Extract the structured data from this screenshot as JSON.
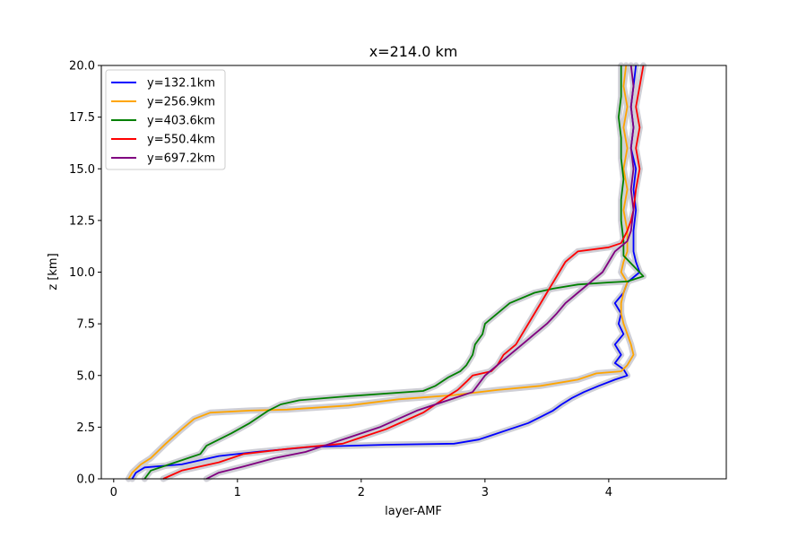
{
  "chart_data": {
    "type": "line",
    "title": "x=214.0 km",
    "xlabel": "layer-AMF",
    "ylabel": "z [km]",
    "xlim": [
      -0.1,
      4.95
    ],
    "ylim": [
      0,
      20
    ],
    "xticks": [
      0,
      1,
      2,
      3,
      4
    ],
    "yticks": [
      0.0,
      2.5,
      5.0,
      7.5,
      10.0,
      12.5,
      15.0,
      17.5,
      20.0
    ],
    "grid": false,
    "legend_position": "upper left",
    "uncertainty_band_color": "#cfcfd6",
    "series": [
      {
        "name": "y=132.1km",
        "color": "#0000ff",
        "points": [
          [
            0.15,
            0.0
          ],
          [
            0.18,
            0.3
          ],
          [
            0.25,
            0.55
          ],
          [
            0.55,
            0.7
          ],
          [
            0.85,
            1.1
          ],
          [
            1.15,
            1.3
          ],
          [
            1.6,
            1.55
          ],
          [
            2.2,
            1.65
          ],
          [
            2.75,
            1.7
          ],
          [
            2.95,
            1.9
          ],
          [
            3.05,
            2.1
          ],
          [
            3.2,
            2.4
          ],
          [
            3.35,
            2.7
          ],
          [
            3.45,
            3.0
          ],
          [
            3.55,
            3.3
          ],
          [
            3.62,
            3.6
          ],
          [
            3.7,
            3.9
          ],
          [
            3.8,
            4.2
          ],
          [
            3.92,
            4.5
          ],
          [
            4.05,
            4.8
          ],
          [
            4.15,
            5.0
          ],
          [
            4.12,
            5.3
          ],
          [
            4.05,
            5.6
          ],
          [
            4.1,
            6.0
          ],
          [
            4.05,
            6.5
          ],
          [
            4.12,
            7.0
          ],
          [
            4.08,
            7.5
          ],
          [
            4.1,
            8.0
          ],
          [
            4.05,
            8.5
          ],
          [
            4.12,
            9.0
          ],
          [
            4.15,
            9.5
          ],
          [
            4.25,
            10.0
          ],
          [
            4.22,
            10.5
          ],
          [
            4.2,
            11.0
          ],
          [
            4.2,
            12.0
          ],
          [
            4.22,
            13.0
          ],
          [
            4.2,
            14.0
          ],
          [
            4.22,
            15.0
          ],
          [
            4.18,
            16.0
          ],
          [
            4.2,
            17.0
          ],
          [
            4.18,
            18.0
          ],
          [
            4.2,
            19.0
          ],
          [
            4.22,
            20.0
          ]
        ]
      },
      {
        "name": "y=256.9km",
        "color": "#ffa500",
        "points": [
          [
            0.12,
            0.0
          ],
          [
            0.15,
            0.3
          ],
          [
            0.22,
            0.7
          ],
          [
            0.3,
            1.0
          ],
          [
            0.42,
            1.7
          ],
          [
            0.55,
            2.4
          ],
          [
            0.65,
            2.9
          ],
          [
            0.78,
            3.2
          ],
          [
            1.1,
            3.3
          ],
          [
            1.4,
            3.35
          ],
          [
            1.9,
            3.55
          ],
          [
            2.3,
            3.85
          ],
          [
            2.75,
            4.05
          ],
          [
            3.1,
            4.3
          ],
          [
            3.45,
            4.5
          ],
          [
            3.75,
            4.8
          ],
          [
            3.9,
            5.1
          ],
          [
            4.1,
            5.2
          ],
          [
            4.15,
            5.5
          ],
          [
            4.2,
            6.0
          ],
          [
            4.18,
            6.5
          ],
          [
            4.15,
            7.0
          ],
          [
            4.12,
            7.5
          ],
          [
            4.1,
            8.0
          ],
          [
            4.1,
            8.5
          ],
          [
            4.12,
            9.0
          ],
          [
            4.15,
            9.5
          ],
          [
            4.1,
            10.0
          ],
          [
            4.12,
            10.5
          ],
          [
            4.15,
            11.0
          ],
          [
            4.15,
            12.0
          ],
          [
            4.12,
            13.0
          ],
          [
            4.15,
            14.0
          ],
          [
            4.12,
            15.0
          ],
          [
            4.15,
            16.0
          ],
          [
            4.12,
            17.0
          ],
          [
            4.15,
            18.0
          ],
          [
            4.12,
            19.0
          ],
          [
            4.14,
            20.0
          ]
        ]
      },
      {
        "name": "y=403.6km",
        "color": "#008000",
        "points": [
          [
            0.25,
            0.0
          ],
          [
            0.3,
            0.4
          ],
          [
            0.45,
            0.7
          ],
          [
            0.7,
            1.2
          ],
          [
            0.75,
            1.6
          ],
          [
            0.95,
            2.2
          ],
          [
            1.1,
            2.7
          ],
          [
            1.25,
            3.3
          ],
          [
            1.35,
            3.6
          ],
          [
            1.5,
            3.8
          ],
          [
            1.9,
            4.0
          ],
          [
            2.5,
            4.25
          ],
          [
            2.6,
            4.5
          ],
          [
            2.7,
            4.9
          ],
          [
            2.8,
            5.2
          ],
          [
            2.85,
            5.5
          ],
          [
            2.9,
            6.0
          ],
          [
            2.92,
            6.5
          ],
          [
            2.98,
            7.0
          ],
          [
            3.0,
            7.5
          ],
          [
            3.1,
            8.0
          ],
          [
            3.2,
            8.5
          ],
          [
            3.4,
            9.0
          ],
          [
            3.55,
            9.2
          ],
          [
            3.75,
            9.4
          ],
          [
            4.0,
            9.5
          ],
          [
            4.15,
            9.55
          ],
          [
            4.28,
            9.8
          ],
          [
            4.2,
            10.3
          ],
          [
            4.12,
            10.8
          ],
          [
            4.12,
            11.5
          ],
          [
            4.1,
            12.5
          ],
          [
            4.1,
            13.5
          ],
          [
            4.12,
            14.5
          ],
          [
            4.1,
            15.5
          ],
          [
            4.1,
            16.5
          ],
          [
            4.08,
            17.5
          ],
          [
            4.1,
            18.5
          ],
          [
            4.1,
            19.5
          ],
          [
            4.1,
            20.0
          ]
        ]
      },
      {
        "name": "y=550.4km",
        "color": "#ff0000",
        "points": [
          [
            0.4,
            0.0
          ],
          [
            0.55,
            0.4
          ],
          [
            0.85,
            0.8
          ],
          [
            1.05,
            1.2
          ],
          [
            1.4,
            1.45
          ],
          [
            1.85,
            1.7
          ],
          [
            2.0,
            2.0
          ],
          [
            2.2,
            2.4
          ],
          [
            2.35,
            2.8
          ],
          [
            2.5,
            3.2
          ],
          [
            2.6,
            3.6
          ],
          [
            2.7,
            4.0
          ],
          [
            2.78,
            4.3
          ],
          [
            2.85,
            4.7
          ],
          [
            2.9,
            5.0
          ],
          [
            3.05,
            5.2
          ],
          [
            3.1,
            5.5
          ],
          [
            3.15,
            6.0
          ],
          [
            3.25,
            6.5
          ],
          [
            3.3,
            7.0
          ],
          [
            3.35,
            7.5
          ],
          [
            3.4,
            8.0
          ],
          [
            3.45,
            8.5
          ],
          [
            3.5,
            9.0
          ],
          [
            3.55,
            9.5
          ],
          [
            3.6,
            10.0
          ],
          [
            3.65,
            10.5
          ],
          [
            3.75,
            11.0
          ],
          [
            4.0,
            11.2
          ],
          [
            4.1,
            11.4
          ],
          [
            4.15,
            12.0
          ],
          [
            4.18,
            12.5
          ],
          [
            4.2,
            13.0
          ],
          [
            4.22,
            14.0
          ],
          [
            4.25,
            15.0
          ],
          [
            4.22,
            16.0
          ],
          [
            4.25,
            17.0
          ],
          [
            4.22,
            18.0
          ],
          [
            4.25,
            19.0
          ],
          [
            4.28,
            20.0
          ]
        ]
      },
      {
        "name": "y=697.2km",
        "color": "#800080",
        "points": [
          [
            0.75,
            0.0
          ],
          [
            0.85,
            0.3
          ],
          [
            1.05,
            0.6
          ],
          [
            1.3,
            1.0
          ],
          [
            1.55,
            1.3
          ],
          [
            1.75,
            1.7
          ],
          [
            1.95,
            2.1
          ],
          [
            2.15,
            2.5
          ],
          [
            2.3,
            2.9
          ],
          [
            2.45,
            3.3
          ],
          [
            2.6,
            3.6
          ],
          [
            2.75,
            3.9
          ],
          [
            2.9,
            4.2
          ],
          [
            2.95,
            4.6
          ],
          [
            3.0,
            5.0
          ],
          [
            3.1,
            5.5
          ],
          [
            3.2,
            6.0
          ],
          [
            3.3,
            6.5
          ],
          [
            3.4,
            7.0
          ],
          [
            3.5,
            7.5
          ],
          [
            3.58,
            8.0
          ],
          [
            3.65,
            8.5
          ],
          [
            3.75,
            9.0
          ],
          [
            3.85,
            9.5
          ],
          [
            3.95,
            10.0
          ],
          [
            4.0,
            10.5
          ],
          [
            4.05,
            11.0
          ],
          [
            4.15,
            11.5
          ],
          [
            4.18,
            12.0
          ],
          [
            4.2,
            13.0
          ],
          [
            4.18,
            14.0
          ],
          [
            4.2,
            15.0
          ],
          [
            4.18,
            16.0
          ],
          [
            4.2,
            17.0
          ],
          [
            4.18,
            18.0
          ],
          [
            4.2,
            19.0
          ],
          [
            4.18,
            20.0
          ]
        ]
      }
    ]
  }
}
